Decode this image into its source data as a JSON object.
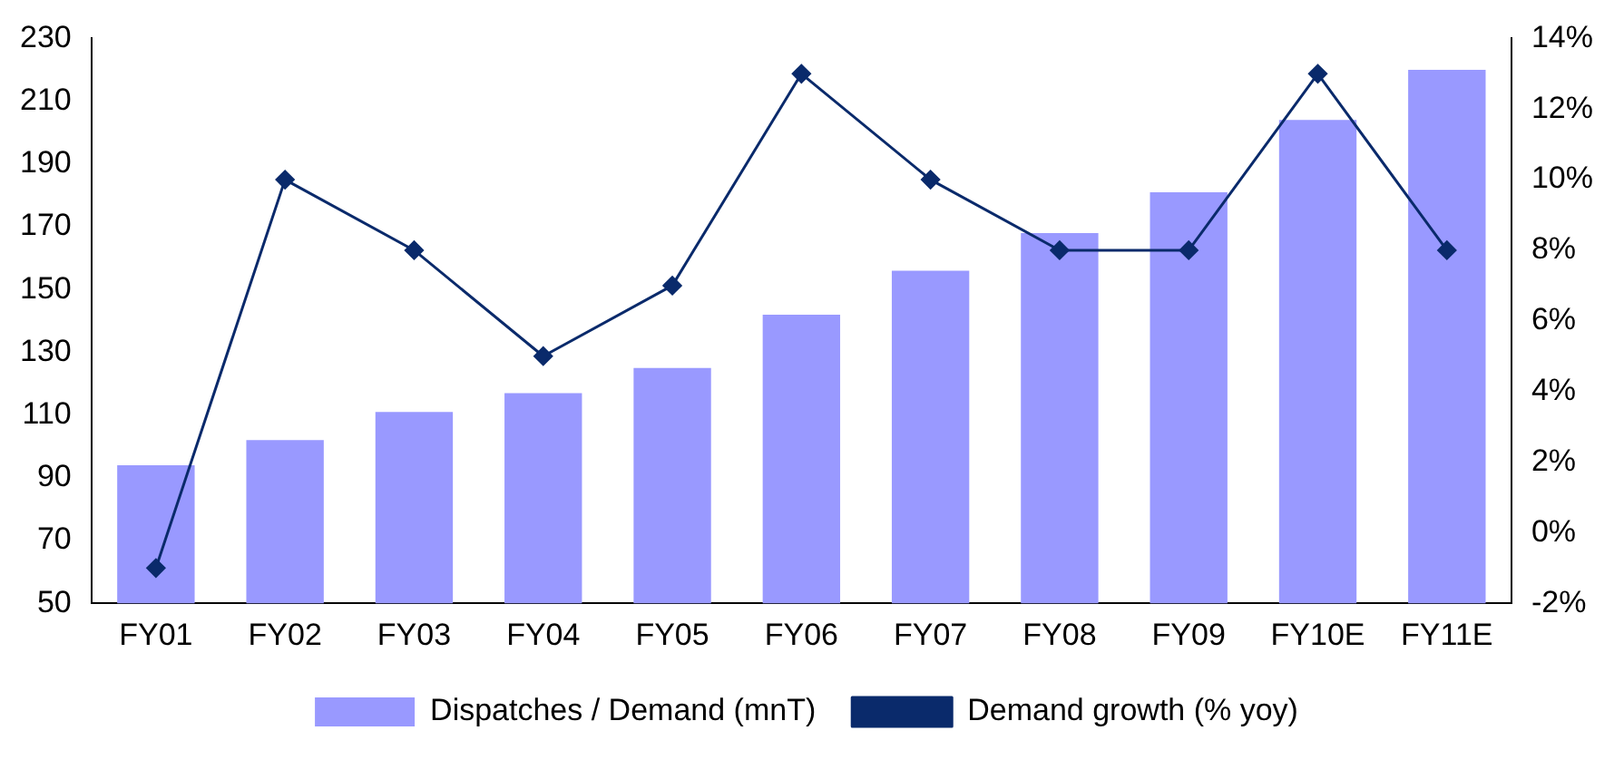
{
  "chart_data": {
    "type": "bar",
    "categories": [
      "FY01",
      "FY02",
      "FY03",
      "FY04",
      "FY05",
      "FY06",
      "FY07",
      "FY08",
      "FY09",
      "FY10E",
      "FY11E"
    ],
    "series": [
      {
        "name": "Dispatches / Demand (mnT)",
        "color": "#9999ff",
        "values": [
          94,
          102,
          111,
          117,
          125,
          142,
          156,
          168,
          181,
          204,
          220
        ]
      },
      {
        "name": "Demand growth (% yoy)",
        "color": "#0a2a6b",
        "type": "line",
        "axis": "y2",
        "values": [
          -1,
          10,
          8,
          5,
          7,
          13,
          10,
          8,
          8,
          13,
          8
        ]
      }
    ],
    "ylim": [
      50,
      230
    ],
    "yticks": [
      50,
      70,
      90,
      110,
      130,
      150,
      170,
      190,
      210,
      230
    ],
    "y2lim": [
      -2,
      14
    ],
    "y2ticks": [
      {
        "value": -2,
        "label": "-2%"
      },
      {
        "value": 0,
        "label": "0%"
      },
      {
        "value": 2,
        "label": "2%"
      },
      {
        "value": 4,
        "label": "4%"
      },
      {
        "value": 6,
        "label": "6%"
      },
      {
        "value": 8,
        "label": "8%"
      },
      {
        "value": 10,
        "label": "10%"
      },
      {
        "value": 12,
        "label": "12%"
      },
      {
        "value": 14,
        "label": "14%"
      }
    ],
    "marker": "diamond",
    "legend": "bottom",
    "grid": false
  }
}
